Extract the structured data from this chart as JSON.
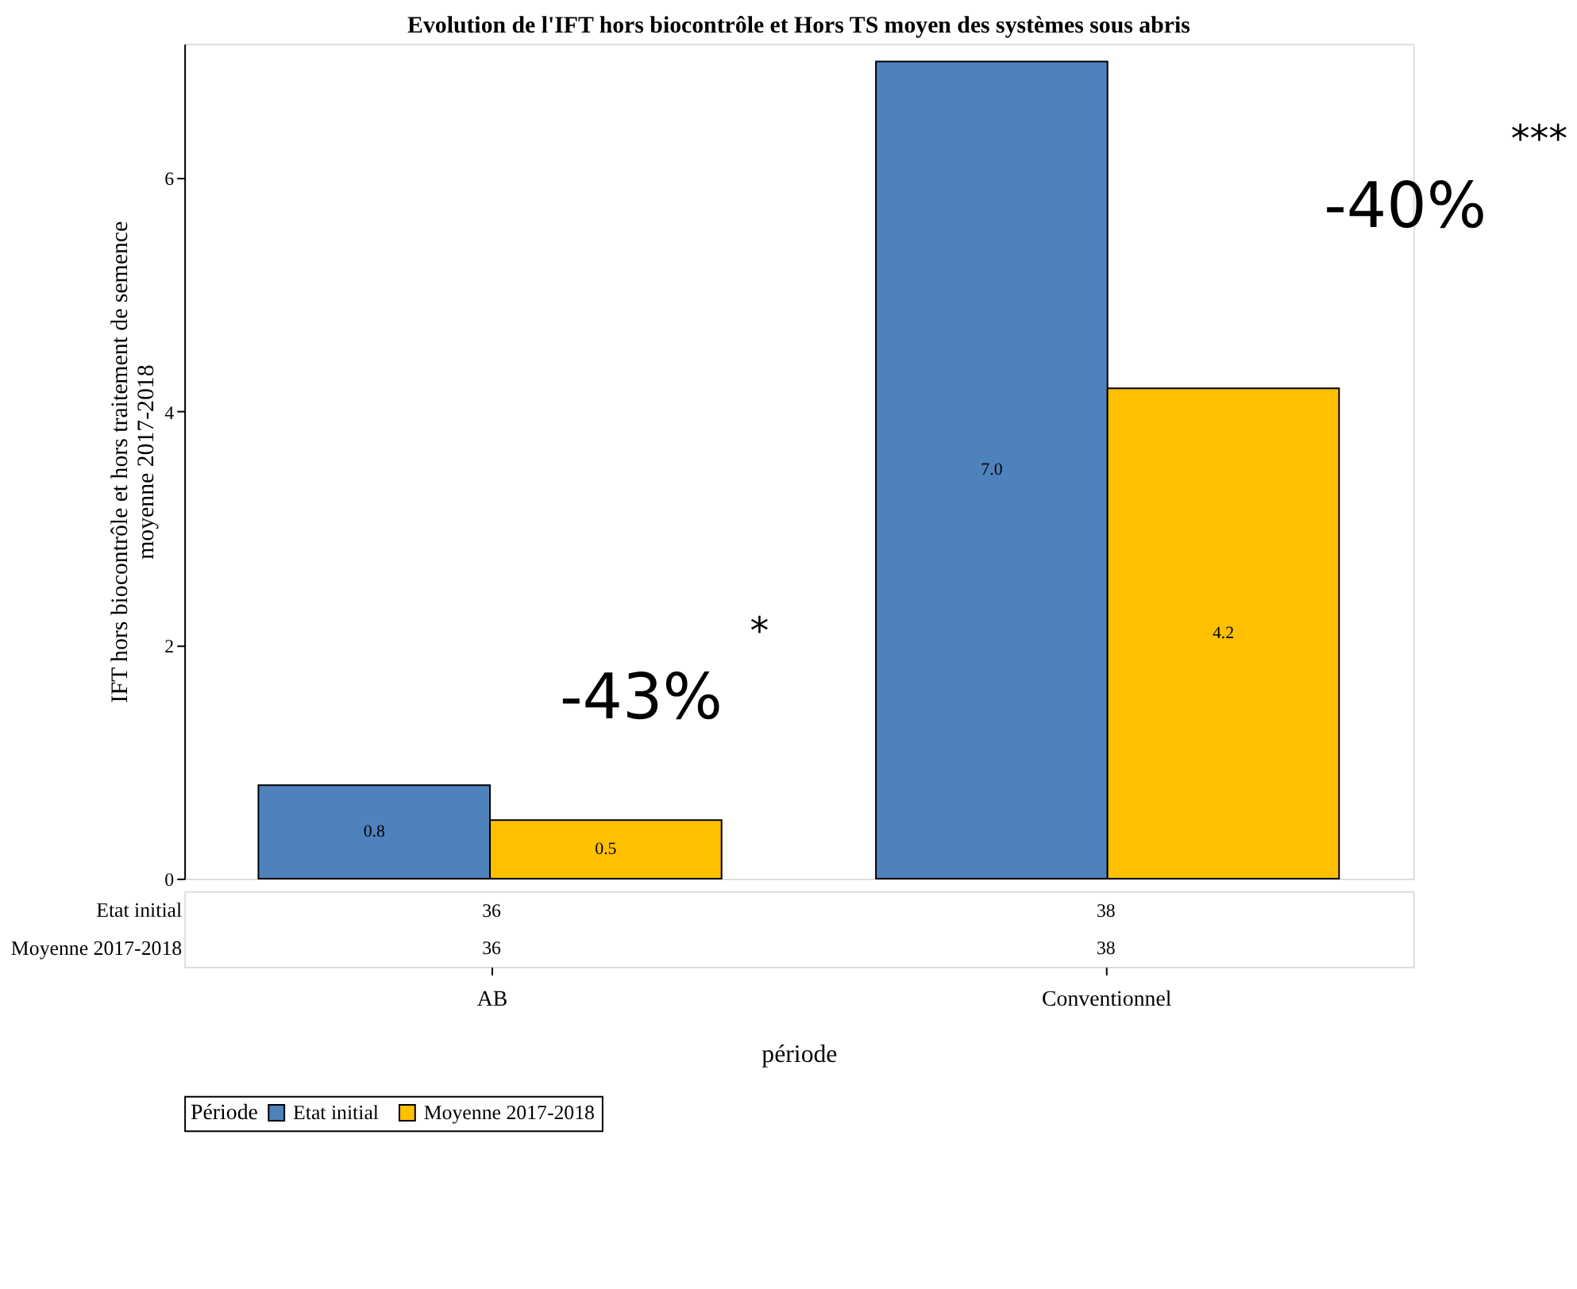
{
  "chart_data": {
    "type": "bar",
    "title": "Evolution de l'IFT hors biocontrôle et Hors TS moyen des systèmes sous abris",
    "xlabel": "période",
    "ylabel": "IFT hors biocontrôle et hors traitement de semence\nmoyenne 2017-2018",
    "legend_title": "Période",
    "categories": [
      "AB",
      "Conventionnel"
    ],
    "series": [
      {
        "name": "Etat initial",
        "color": "#4f81bd",
        "values": [
          0.8,
          7.0
        ],
        "value_labels": [
          "0.8",
          "7.0"
        ]
      },
      {
        "name": "Moyenne 2017-2018",
        "color": "#ffc000",
        "values": [
          0.5,
          4.2
        ],
        "value_labels": [
          "0.5",
          "4.2"
        ]
      }
    ],
    "ylim": [
      0,
      7.15
    ],
    "yticks": [
      0,
      2,
      4,
      6
    ],
    "grid": false,
    "legend": "bottom",
    "annotations": [
      "36",
      "38",
      "36",
      "38",
      "-43%",
      "*",
      "-40%",
      "***"
    ]
  }
}
